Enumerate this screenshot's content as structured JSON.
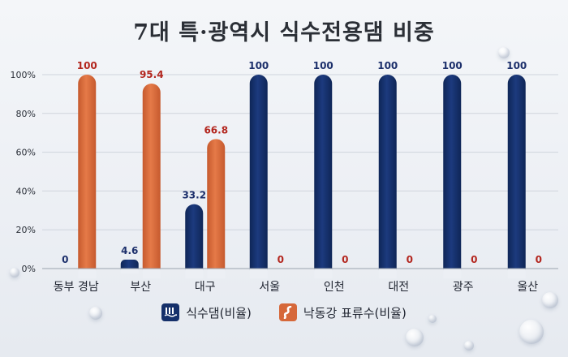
{
  "chart_data": {
    "type": "bar",
    "title": "7대 특·광역시 식수전용댐 비중",
    "categories": [
      "동부 경남",
      "부산",
      "대구",
      "서울",
      "인천",
      "대전",
      "광주",
      "울산"
    ],
    "series": [
      {
        "name": "식수댐(비율)",
        "color": "#15306a",
        "label_color": "#1c2f6b",
        "values": [
          0,
          4.6,
          33.2,
          100,
          100,
          100,
          100,
          100
        ]
      },
      {
        "name": "낙동강 표류수(비율)",
        "color": "#d6683a",
        "label_color": "#b3261e",
        "values": [
          100,
          95.4,
          66.8,
          0,
          0,
          0,
          0,
          0
        ]
      }
    ],
    "value_labels": [
      [
        "0",
        "4.6",
        "33.2",
        "100",
        "100",
        "100",
        "100",
        "100"
      ],
      [
        "100",
        "95.4",
        "66.8",
        "0",
        "0",
        "0",
        "0",
        "0"
      ]
    ],
    "yticks": [
      "0%",
      "20%",
      "40%",
      "60%",
      "80%",
      "100%"
    ],
    "ytick_values": [
      0,
      20,
      40,
      60,
      80,
      100
    ],
    "ylim": [
      0,
      100
    ],
    "grid": true,
    "legend": "bottom-center"
  },
  "legend_icons": [
    "dam-icon",
    "river-icon"
  ]
}
